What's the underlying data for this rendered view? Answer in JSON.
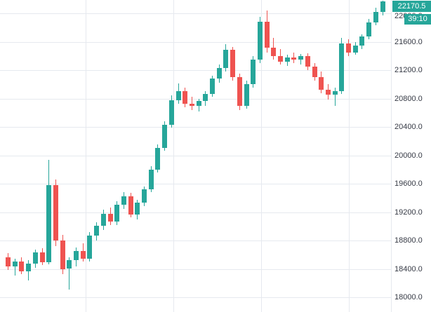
{
  "chart_data": {
    "type": "candlestick",
    "title": "",
    "grid": true,
    "legend_position": "none",
    "colors": {
      "up": "#26a69a",
      "down": "#ef5350",
      "badge": "#26a69a",
      "grid": "#e6e9ef",
      "axis_text": "#363a45",
      "background": "#ffffff"
    },
    "ylim": [
      17960,
      22250
    ],
    "price_axis": {
      "side": "right",
      "last_price": 22170.5,
      "last_price_label": "22170.5",
      "countdown": "39:10",
      "ticks": [
        {
          "price": 22000,
          "label": "22000.0",
          "dy": 4
        },
        {
          "price": 21600,
          "label": "21600.0"
        },
        {
          "price": 21200,
          "label": "21200.0"
        },
        {
          "price": 20800,
          "label": "20800.0"
        },
        {
          "price": 20400,
          "label": "20400.0"
        },
        {
          "price": 20000,
          "label": "20000.0"
        },
        {
          "price": 19600,
          "label": "19600.0"
        },
        {
          "price": 19200,
          "label": "19200.0"
        },
        {
          "price": 18800,
          "label": "18800.0"
        },
        {
          "price": 18400,
          "label": "18400.0"
        },
        {
          "price": 18000,
          "label": "18000.0"
        }
      ]
    },
    "candles_format": [
      "open",
      "high",
      "low",
      "close"
    ],
    "candles": [
      [
        18560,
        18620,
        18390,
        18430
      ],
      [
        18430,
        18540,
        18310,
        18500
      ],
      [
        18500,
        18560,
        18330,
        18370
      ],
      [
        18370,
        18520,
        18240,
        18470
      ],
      [
        18470,
        18670,
        18410,
        18630
      ],
      [
        18630,
        18690,
        18450,
        18490
      ],
      [
        18490,
        19940,
        18460,
        19580
      ],
      [
        19580,
        19660,
        18720,
        18800
      ],
      [
        18800,
        18880,
        18330,
        18400
      ],
      [
        18400,
        18560,
        18110,
        18520
      ],
      [
        18520,
        18700,
        18430,
        18650
      ],
      [
        18650,
        18760,
        18500,
        18540
      ],
      [
        18540,
        18920,
        18500,
        18870
      ],
      [
        18870,
        19060,
        18800,
        19010
      ],
      [
        19010,
        19230,
        18950,
        19180
      ],
      [
        19180,
        19260,
        19020,
        19070
      ],
      [
        19070,
        19350,
        19020,
        19300
      ],
      [
        19300,
        19480,
        19240,
        19420
      ],
      [
        19420,
        19470,
        19130,
        19170
      ],
      [
        19170,
        19370,
        19100,
        19330
      ],
      [
        19330,
        19560,
        19280,
        19520
      ],
      [
        19520,
        19850,
        19480,
        19800
      ],
      [
        19800,
        20150,
        19760,
        20100
      ],
      [
        20100,
        20480,
        20060,
        20430
      ],
      [
        20430,
        20840,
        20390,
        20780
      ],
      [
        20780,
        21010,
        20730,
        20900
      ],
      [
        20900,
        20950,
        20680,
        20730
      ],
      [
        20730,
        20820,
        20640,
        20700
      ],
      [
        20700,
        20800,
        20620,
        20770
      ],
      [
        20770,
        20900,
        20700,
        20860
      ],
      [
        20860,
        21120,
        20820,
        21080
      ],
      [
        21080,
        21280,
        21020,
        21230
      ],
      [
        21230,
        21570,
        21180,
        21490
      ],
      [
        21490,
        21530,
        21050,
        21100
      ],
      [
        21100,
        21150,
        20640,
        20700
      ],
      [
        20700,
        21050,
        20660,
        21000
      ],
      [
        21000,
        21400,
        20950,
        21350
      ],
      [
        21350,
        21950,
        21300,
        21880
      ],
      [
        21880,
        22040,
        21450,
        21520
      ],
      [
        21520,
        21650,
        21350,
        21400
      ],
      [
        21400,
        21500,
        21280,
        21320
      ],
      [
        21320,
        21420,
        21260,
        21380
      ],
      [
        21380,
        21450,
        21300,
        21350
      ],
      [
        21350,
        21430,
        21280,
        21400
      ],
      [
        21400,
        21440,
        21200,
        21250
      ],
      [
        21250,
        21300,
        21050,
        21100
      ],
      [
        21100,
        21180,
        20870,
        20920
      ],
      [
        20920,
        21000,
        20790,
        20850
      ],
      [
        20850,
        20950,
        20700,
        20900
      ],
      [
        20900,
        21650,
        20860,
        21580
      ],
      [
        21580,
        21630,
        21400,
        21450
      ],
      [
        21450,
        21600,
        21420,
        21550
      ],
      [
        21550,
        21700,
        21500,
        21670
      ],
      [
        21670,
        21920,
        21630,
        21870
      ],
      [
        21870,
        22080,
        21830,
        22020
      ],
      [
        22020,
        22200,
        21970,
        22170.5
      ]
    ]
  }
}
